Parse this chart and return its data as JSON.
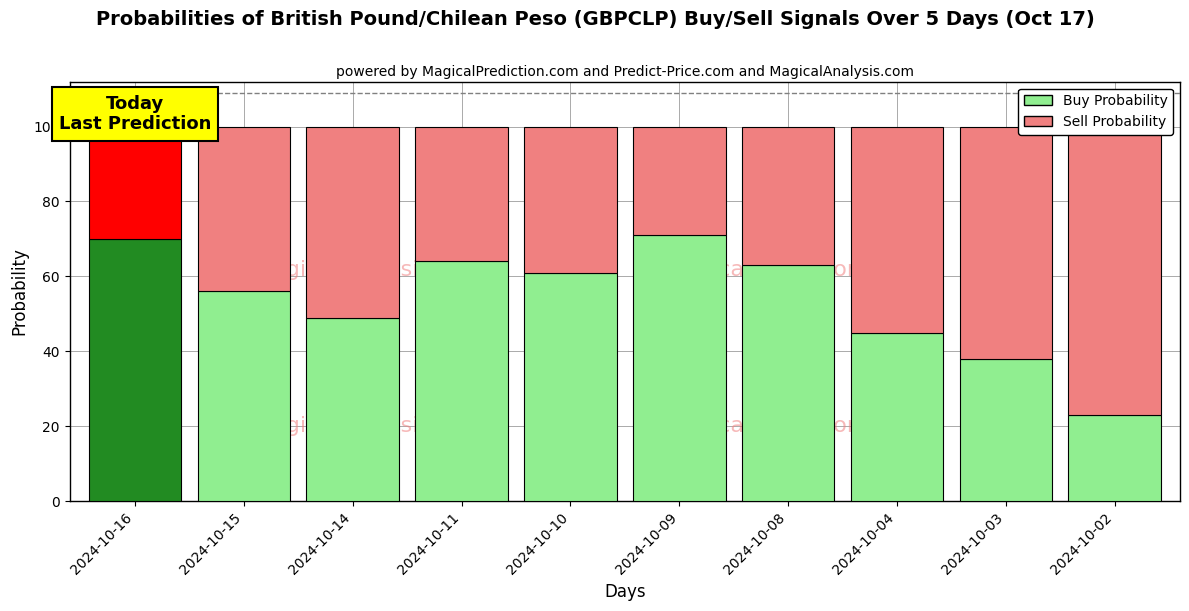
{
  "title": "Probabilities of British Pound/Chilean Peso (GBPCLP) Buy/Sell Signals Over 5 Days (Oct 17)",
  "subtitle": "powered by MagicalPrediction.com and Predict-Price.com and MagicalAnalysis.com",
  "xlabel": "Days",
  "ylabel": "Probability",
  "categories": [
    "2024-10-16",
    "2024-10-15",
    "2024-10-14",
    "2024-10-11",
    "2024-10-10",
    "2024-10-09",
    "2024-10-08",
    "2024-10-04",
    "2024-10-03",
    "2024-10-02"
  ],
  "buy_values": [
    70,
    56,
    49,
    64,
    61,
    71,
    63,
    45,
    38,
    23
  ],
  "sell_values": [
    30,
    44,
    51,
    36,
    39,
    29,
    37,
    55,
    62,
    77
  ],
  "buy_color_today": "#228B22",
  "sell_color_today": "#FF0000",
  "buy_color_rest": "#90EE90",
  "sell_color_rest": "#F08080",
  "annotation_text": "Today\nLast Prediction",
  "annotation_bg": "#FFFF00",
  "ylim": [
    0,
    112
  ],
  "yticks": [
    0,
    20,
    40,
    60,
    80,
    100
  ],
  "dashed_line_y": 109,
  "legend_buy": "Buy Probability",
  "legend_sell": "Sell Probability",
  "background_color": "#ffffff",
  "grid_color": "#aaaaaa"
}
